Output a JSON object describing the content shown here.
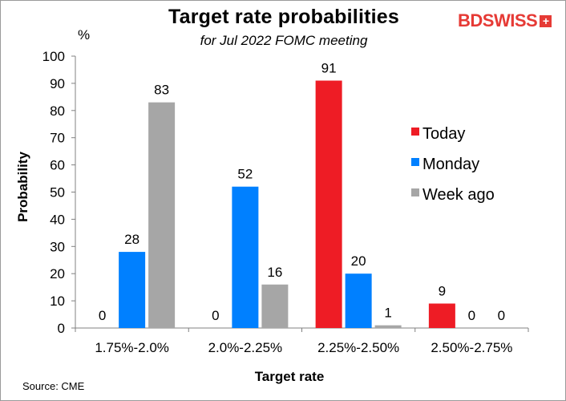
{
  "chart_data": {
    "type": "bar",
    "title": "Target rate probabilities",
    "subtitle": "for Jul 2022 FOMC meeting",
    "xlabel": "Target rate",
    "ylabel": "Probability",
    "yunit": "%",
    "ylim": [
      0,
      100
    ],
    "yticks": [
      0,
      10,
      20,
      30,
      40,
      50,
      60,
      70,
      80,
      90,
      100
    ],
    "categories": [
      "1.75%-2.0%",
      "2.0%-2.25%",
      "2.25%-2.50%",
      "2.50%-2.75%"
    ],
    "series": [
      {
        "name": "Today",
        "color": "#ee1c25",
        "values": [
          0,
          0,
          91,
          9
        ],
        "labels": [
          "0",
          "0",
          "91",
          "9"
        ]
      },
      {
        "name": "Monday",
        "color": "#0080ff",
        "values": [
          28,
          52,
          20,
          0
        ],
        "labels": [
          "28",
          "52",
          "20",
          "0"
        ]
      },
      {
        "name": "Week ago",
        "color": "#a6a6a6",
        "values": [
          83,
          16,
          1,
          0
        ],
        "labels": [
          "83",
          "16",
          "1",
          "0"
        ]
      }
    ],
    "legend_position": "right",
    "grid": false
  },
  "logo": {
    "text": "BDSWISS",
    "mark": "+"
  },
  "source": "Source: CME"
}
